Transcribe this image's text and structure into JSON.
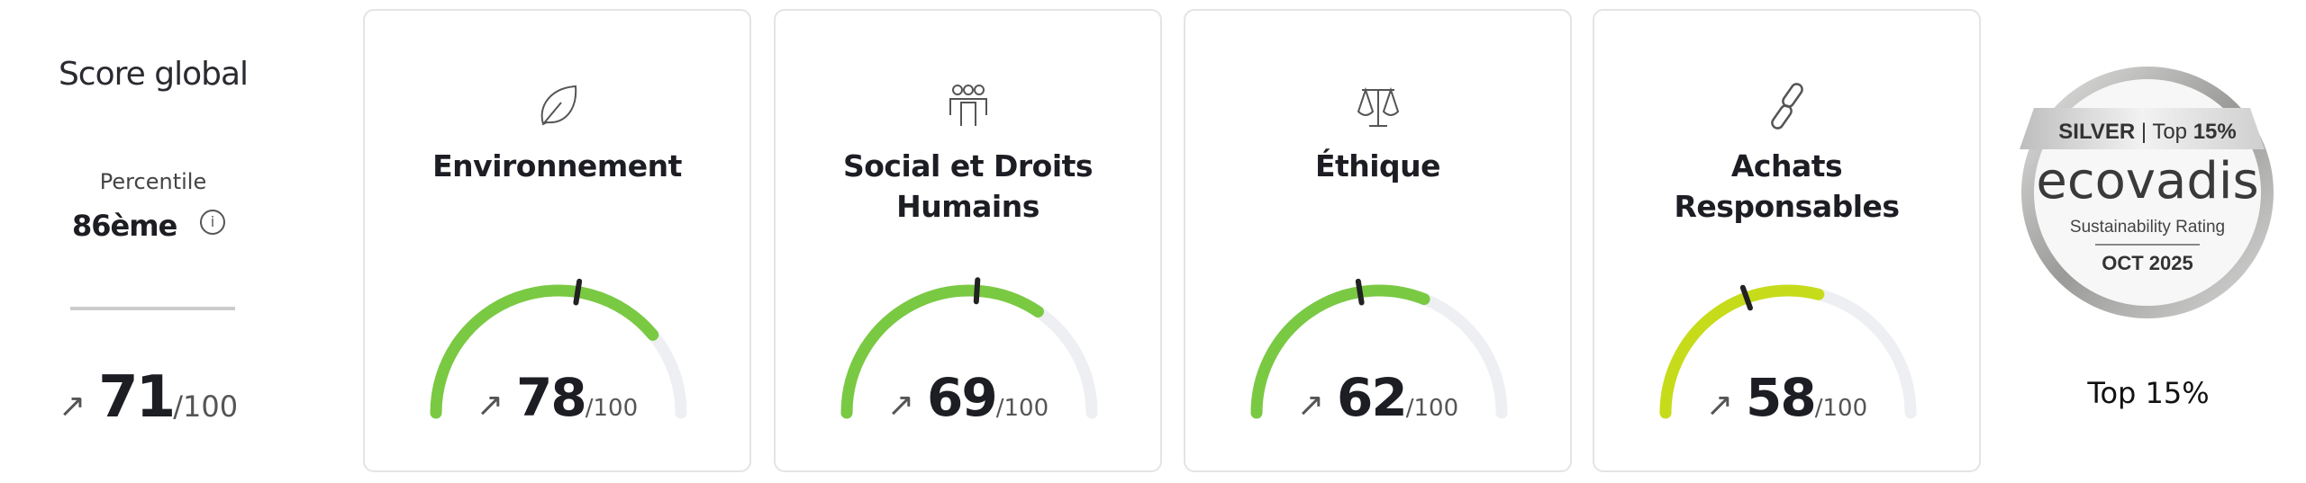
{
  "global": {
    "title": "Score global",
    "percentile_label": "Percentile",
    "percentile_value": "86ème",
    "info_icon": "info-icon",
    "trend_icon": "arrow-up-right-icon",
    "score": "71",
    "score_max": "/100"
  },
  "cards": [
    {
      "icon": "leaf-icon",
      "title_lines": [
        "Environnement",
        ""
      ],
      "score": "78",
      "score_max": "/100",
      "value": 78,
      "marker": 55,
      "color": "#7ac943"
    },
    {
      "icon": "people-icon",
      "title_lines": [
        "Social et Droits",
        "Humains"
      ],
      "score": "69",
      "score_max": "/100",
      "value": 69,
      "marker": 52,
      "color": "#7ac943"
    },
    {
      "icon": "scales-icon",
      "title_lines": [
        "Éthique",
        ""
      ],
      "score": "62",
      "score_max": "/100",
      "value": 62,
      "marker": 45,
      "color": "#7ac943"
    },
    {
      "icon": "chain-link-icon",
      "title_lines": [
        "Achats",
        "Responsables"
      ],
      "score": "58",
      "score_max": "/100",
      "value": 58,
      "marker": 39,
      "color": "#c6dc1a"
    }
  ],
  "gauge_track_color": "#eeeff2",
  "badge": {
    "ribbon_left": "SILVER",
    "ribbon_sep": "|",
    "ribbon_mid": "Top",
    "ribbon_right": "15%",
    "brand": "ecovadis",
    "subtitle": "Sustainability Rating",
    "date": "OCT 2025"
  },
  "top_label": "Top 15%"
}
